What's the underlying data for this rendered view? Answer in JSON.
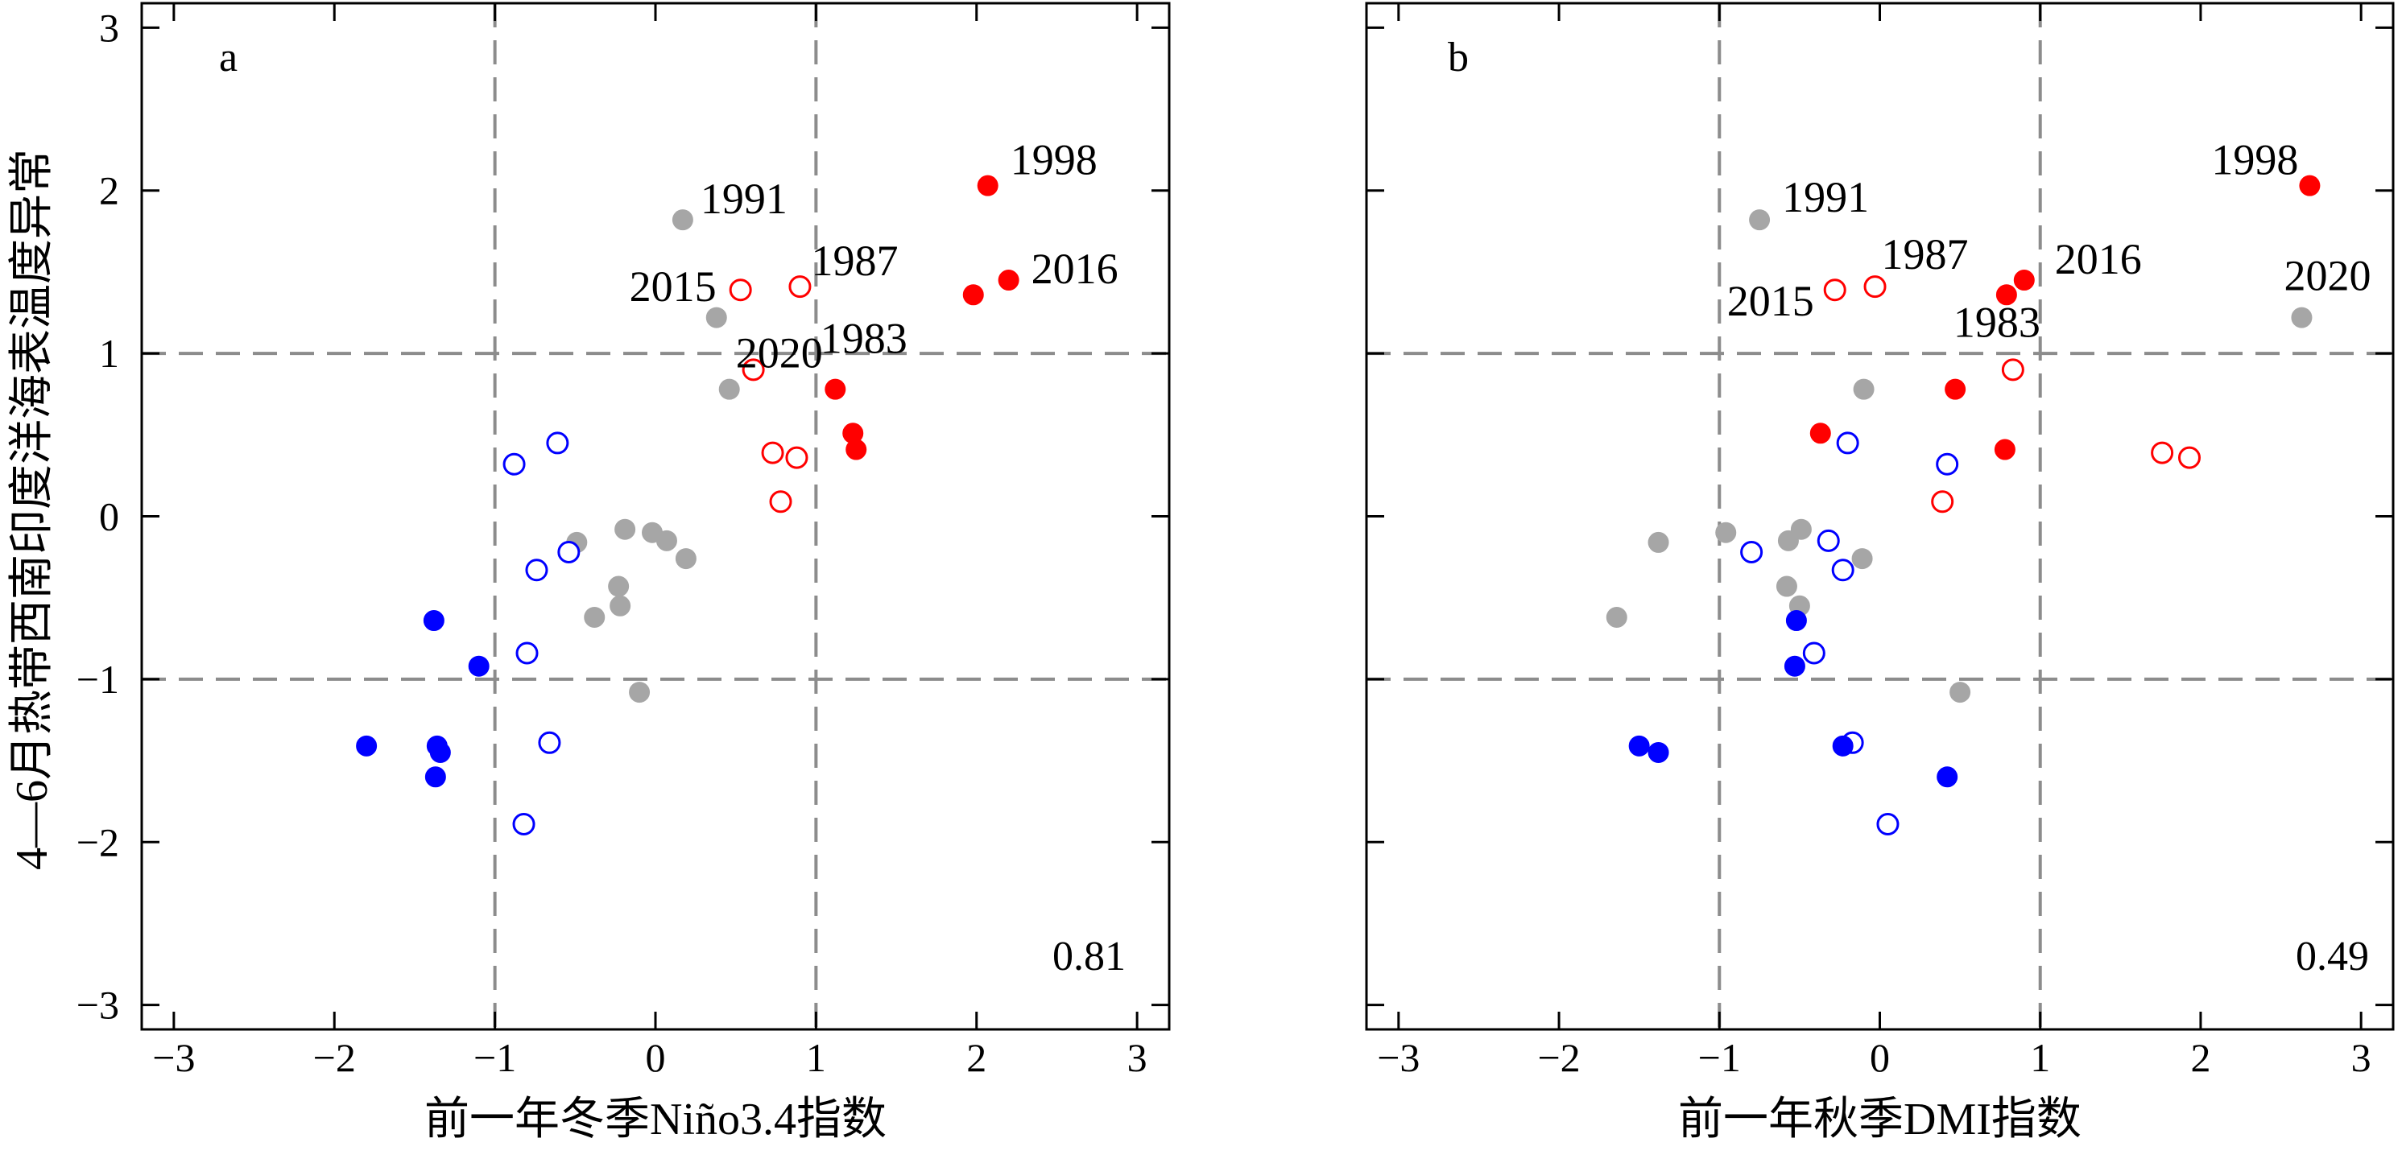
{
  "figure": {
    "ylabel": "4—6月热带西南印度洋海表温度异常",
    "colors": {
      "red": "#ff0000",
      "blue": "#0000ff",
      "gray": "#a6a6a6"
    }
  },
  "chart_data": [
    {
      "type": "scatter",
      "panel_label": "a",
      "xlabel": "前一年冬季Niño3.4指数",
      "ylabel": "4—6月热带西南印度洋海表温度异常",
      "xlim": [
        -3.2,
        3.2
      ],
      "ylim": [
        -3.15,
        3.15
      ],
      "xticks": [
        -3,
        -2,
        -1,
        0,
        1,
        2,
        3
      ],
      "yticks": [
        -3,
        -2,
        -1,
        0,
        1,
        2,
        3
      ],
      "ref_lines": {
        "x": [
          -1,
          1
        ],
        "y": [
          -1,
          1
        ]
      },
      "correlation": "0.81",
      "points": [
        {
          "x": 2.07,
          "y": 2.03,
          "color": "red",
          "filled": true,
          "label": "1998"
        },
        {
          "x": 2.2,
          "y": 1.45,
          "color": "red",
          "filled": true,
          "label": "2016"
        },
        {
          "x": 1.98,
          "y": 1.36,
          "color": "red",
          "filled": true,
          "label": "1983"
        },
        {
          "x": 1.12,
          "y": 0.78,
          "color": "red",
          "filled": true
        },
        {
          "x": 1.23,
          "y": 0.51,
          "color": "red",
          "filled": true
        },
        {
          "x": 1.25,
          "y": 0.41,
          "color": "red",
          "filled": true
        },
        {
          "x": 0.9,
          "y": 1.41,
          "color": "red",
          "filled": false,
          "label": "1987"
        },
        {
          "x": 0.53,
          "y": 1.39,
          "color": "red",
          "filled": false,
          "label": "2015"
        },
        {
          "x": 0.61,
          "y": 0.9,
          "color": "red",
          "filled": false
        },
        {
          "x": 0.73,
          "y": 0.39,
          "color": "red",
          "filled": false
        },
        {
          "x": 0.88,
          "y": 0.36,
          "color": "red",
          "filled": false
        },
        {
          "x": 0.78,
          "y": 0.09,
          "color": "red",
          "filled": false
        },
        {
          "x": 0.17,
          "y": 1.82,
          "color": "gray",
          "filled": true,
          "label": "1991"
        },
        {
          "x": 0.38,
          "y": 1.22,
          "color": "gray",
          "filled": true,
          "label": "2020"
        },
        {
          "x": 0.46,
          "y": 0.78,
          "color": "gray",
          "filled": true
        },
        {
          "x": -0.49,
          "y": -0.16,
          "color": "gray",
          "filled": true
        },
        {
          "x": -0.19,
          "y": -0.08,
          "color": "gray",
          "filled": true
        },
        {
          "x": -0.02,
          "y": -0.1,
          "color": "gray",
          "filled": true
        },
        {
          "x": 0.07,
          "y": -0.15,
          "color": "gray",
          "filled": true
        },
        {
          "x": 0.19,
          "y": -0.26,
          "color": "gray",
          "filled": true
        },
        {
          "x": -0.23,
          "y": -0.43,
          "color": "gray",
          "filled": true
        },
        {
          "x": -0.22,
          "y": -0.55,
          "color": "gray",
          "filled": true
        },
        {
          "x": -0.38,
          "y": -0.62,
          "color": "gray",
          "filled": true
        },
        {
          "x": -0.1,
          "y": -1.08,
          "color": "gray",
          "filled": true
        },
        {
          "x": -0.61,
          "y": 0.45,
          "color": "blue",
          "filled": false
        },
        {
          "x": -0.88,
          "y": 0.32,
          "color": "blue",
          "filled": false
        },
        {
          "x": -0.54,
          "y": -0.22,
          "color": "blue",
          "filled": false
        },
        {
          "x": -0.74,
          "y": -0.33,
          "color": "blue",
          "filled": false
        },
        {
          "x": -0.8,
          "y": -0.84,
          "color": "blue",
          "filled": false
        },
        {
          "x": -0.66,
          "y": -1.39,
          "color": "blue",
          "filled": false
        },
        {
          "x": -0.82,
          "y": -1.89,
          "color": "blue",
          "filled": false
        },
        {
          "x": -1.38,
          "y": -0.64,
          "color": "blue",
          "filled": true
        },
        {
          "x": -1.1,
          "y": -0.92,
          "color": "blue",
          "filled": true
        },
        {
          "x": -1.8,
          "y": -1.41,
          "color": "blue",
          "filled": true
        },
        {
          "x": -1.36,
          "y": -1.41,
          "color": "blue",
          "filled": true
        },
        {
          "x": -1.34,
          "y": -1.45,
          "color": "blue",
          "filled": true
        },
        {
          "x": -1.37,
          "y": -1.6,
          "color": "blue",
          "filled": true
        }
      ]
    },
    {
      "type": "scatter",
      "panel_label": "b",
      "xlabel": "前一年秋季DMI指数",
      "ylabel": "4—6月热带西南印度洋海表温度异常",
      "xlim": [
        -3.2,
        3.2
      ],
      "ylim": [
        -3.15,
        3.15
      ],
      "xticks": [
        -3,
        -2,
        -1,
        0,
        1,
        2,
        3
      ],
      "yticks": [
        -3,
        -2,
        -1,
        0,
        1,
        2,
        3
      ],
      "ref_lines": {
        "x": [
          -1,
          1
        ],
        "y": [
          -1,
          1
        ]
      },
      "correlation": "0.49",
      "points": [
        {
          "x": 2.68,
          "y": 2.03,
          "color": "red",
          "filled": true,
          "label": "1998"
        },
        {
          "x": 0.9,
          "y": 1.45,
          "color": "red",
          "filled": true,
          "label": "2016"
        },
        {
          "x": 0.79,
          "y": 1.36,
          "color": "red",
          "filled": true,
          "label": "1983"
        },
        {
          "x": 0.47,
          "y": 0.78,
          "color": "red",
          "filled": true
        },
        {
          "x": -0.37,
          "y": 0.51,
          "color": "red",
          "filled": true
        },
        {
          "x": 0.78,
          "y": 0.41,
          "color": "red",
          "filled": true
        },
        {
          "x": -0.03,
          "y": 1.41,
          "color": "red",
          "filled": false,
          "label": "1987"
        },
        {
          "x": -0.28,
          "y": 1.39,
          "color": "red",
          "filled": false,
          "label": "2015"
        },
        {
          "x": 0.83,
          "y": 0.9,
          "color": "red",
          "filled": false
        },
        {
          "x": 1.76,
          "y": 0.39,
          "color": "red",
          "filled": false
        },
        {
          "x": 1.93,
          "y": 0.36,
          "color": "red",
          "filled": false
        },
        {
          "x": 0.39,
          "y": 0.09,
          "color": "red",
          "filled": false
        },
        {
          "x": -0.75,
          "y": 1.82,
          "color": "gray",
          "filled": true,
          "label": "1991"
        },
        {
          "x": 2.63,
          "y": 1.22,
          "color": "gray",
          "filled": true,
          "label": "2020"
        },
        {
          "x": -0.1,
          "y": 0.78,
          "color": "gray",
          "filled": true
        },
        {
          "x": -1.38,
          "y": -0.16,
          "color": "gray",
          "filled": true
        },
        {
          "x": -0.49,
          "y": -0.08,
          "color": "gray",
          "filled": true
        },
        {
          "x": -0.96,
          "y": -0.1,
          "color": "gray",
          "filled": true
        },
        {
          "x": -0.57,
          "y": -0.15,
          "color": "gray",
          "filled": true
        },
        {
          "x": -0.11,
          "y": -0.26,
          "color": "gray",
          "filled": true
        },
        {
          "x": -0.58,
          "y": -0.43,
          "color": "gray",
          "filled": true
        },
        {
          "x": -0.5,
          "y": -0.55,
          "color": "gray",
          "filled": true
        },
        {
          "x": -1.64,
          "y": -0.62,
          "color": "gray",
          "filled": true
        },
        {
          "x": 0.5,
          "y": -1.08,
          "color": "gray",
          "filled": true
        },
        {
          "x": -0.2,
          "y": 0.45,
          "color": "blue",
          "filled": false
        },
        {
          "x": 0.42,
          "y": 0.32,
          "color": "blue",
          "filled": false
        },
        {
          "x": -0.32,
          "y": -0.15,
          "color": "blue",
          "filled": false
        },
        {
          "x": -0.8,
          "y": -0.22,
          "color": "blue",
          "filled": false
        },
        {
          "x": -0.23,
          "y": -0.33,
          "color": "blue",
          "filled": false
        },
        {
          "x": -0.41,
          "y": -0.84,
          "color": "blue",
          "filled": false
        },
        {
          "x": -0.17,
          "y": -1.39,
          "color": "blue",
          "filled": false
        },
        {
          "x": 0.05,
          "y": -1.89,
          "color": "blue",
          "filled": false
        },
        {
          "x": -0.52,
          "y": -0.64,
          "color": "blue",
          "filled": true
        },
        {
          "x": -0.53,
          "y": -0.92,
          "color": "blue",
          "filled": true
        },
        {
          "x": -1.5,
          "y": -1.41,
          "color": "blue",
          "filled": true
        },
        {
          "x": -1.38,
          "y": -1.45,
          "color": "blue",
          "filled": true
        },
        {
          "x": -0.23,
          "y": -1.41,
          "color": "blue",
          "filled": true
        },
        {
          "x": 0.42,
          "y": -1.6,
          "color": "blue",
          "filled": true
        }
      ]
    }
  ]
}
